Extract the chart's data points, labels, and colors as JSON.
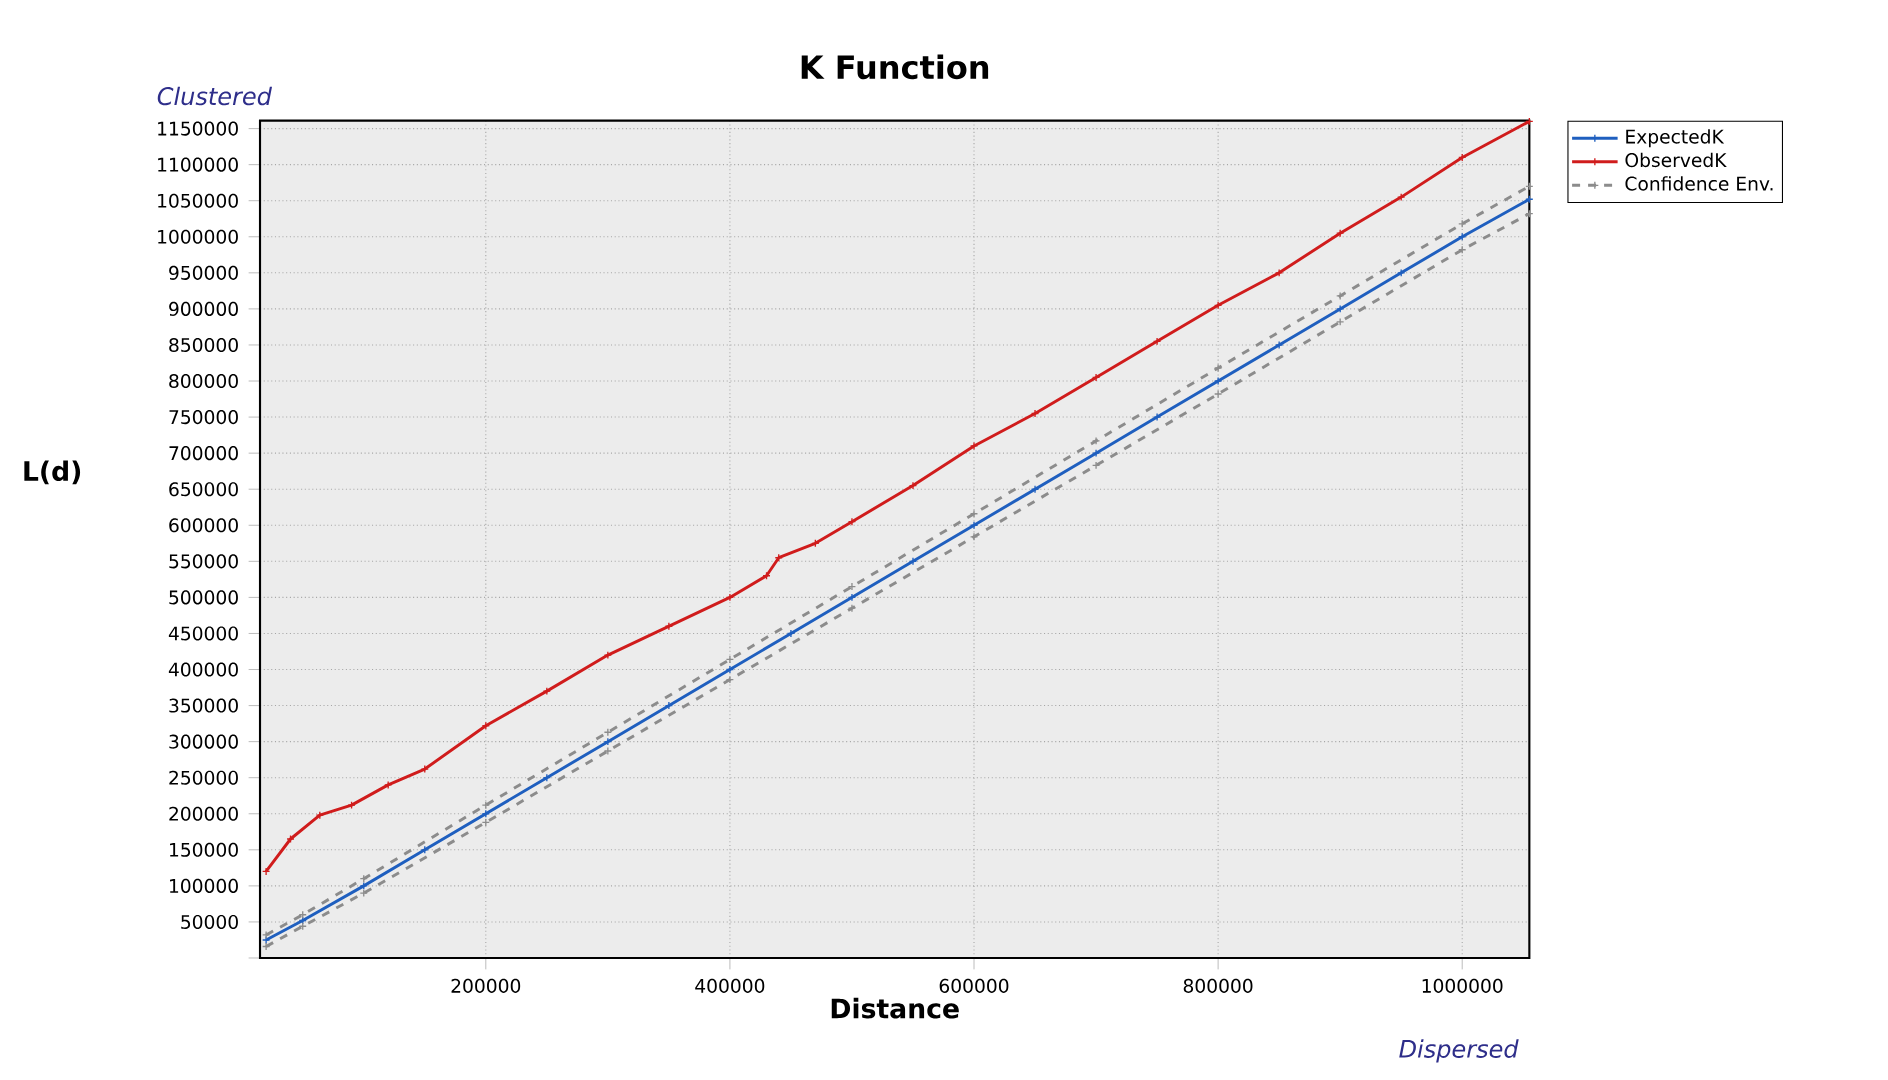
{
  "chart_data": {
    "type": "line",
    "title": "K Function",
    "xlabel": "Distance",
    "ylabel": "L(d)",
    "annotations": [
      "Clustered",
      "Dispersed"
    ],
    "xlim": [
      15000,
      1055000
    ],
    "ylim": [
      0,
      1161000
    ],
    "xticks": [
      200000,
      400000,
      600000,
      800000,
      1000000
    ],
    "yticks": [
      {
        "value": 0,
        "label": null
      },
      50000,
      100000,
      150000,
      200000,
      250000,
      300000,
      350000,
      400000,
      450000,
      500000,
      550000,
      600000,
      650000,
      700000,
      750000,
      800000,
      850000,
      900000,
      950000,
      1000000,
      1050000,
      1100000,
      1150000
    ],
    "grid": true,
    "legend": "top right",
    "marker": "cross",
    "series": [
      {
        "name": "ExpectedK",
        "color": "#1f5fbf",
        "line_style": "solid",
        "x": [
          20000,
          50000,
          100000,
          150000,
          200000,
          250000,
          300000,
          350000,
          400000,
          450000,
          500000,
          550000,
          600000,
          650000,
          700000,
          750000,
          800000,
          850000,
          900000,
          950000,
          1000000,
          1055000
        ],
        "values": [
          25000,
          52000,
          100000,
          150000,
          200000,
          250000,
          300000,
          350000,
          400000,
          450000,
          500000,
          550000,
          600000,
          650000,
          700000,
          750000,
          800000,
          850000,
          900000,
          950000,
          1000000,
          1052000
        ]
      },
      {
        "name": "ObservedK",
        "color": "#d01c1c",
        "line_style": "solid",
        "x": [
          20000,
          40000,
          64000,
          90000,
          120000,
          150000,
          200000,
          250000,
          300000,
          350000,
          400000,
          430000,
          440000,
          470000,
          500000,
          550000,
          600000,
          650000,
          700000,
          750000,
          800000,
          850000,
          900000,
          950000,
          1000000,
          1055000
        ],
        "values": [
          120000,
          165000,
          198000,
          212000,
          240000,
          262000,
          322000,
          370000,
          420000,
          460000,
          500000,
          530000,
          555000,
          575000,
          605000,
          655000,
          710000,
          755000,
          805000,
          855000,
          905000,
          950000,
          1005000,
          1055000,
          1110000,
          1160000
        ]
      },
      {
        "name": "Confidence Env.",
        "color": "#8c8c8c",
        "line_style": "dashed",
        "x": [
          20000,
          50000,
          100000,
          200000,
          300000,
          400000,
          500000,
          600000,
          700000,
          800000,
          900000,
          1000000,
          1055000
        ],
        "values": [
          32000,
          60000,
          110000,
          212000,
          313000,
          414000,
          515000,
          616000,
          717000,
          818000,
          918000,
          1018000,
          1070000
        ]
      },
      {
        "color": "#8c8c8c",
        "line_style": "dashed",
        "x": [
          20000,
          50000,
          100000,
          200000,
          300000,
          400000,
          500000,
          600000,
          700000,
          800000,
          900000,
          1000000,
          1055000
        ],
        "values": [
          16000,
          44000,
          90000,
          188000,
          287000,
          386000,
          485000,
          584000,
          683000,
          782000,
          882000,
          982000,
          1032000
        ]
      }
    ]
  }
}
